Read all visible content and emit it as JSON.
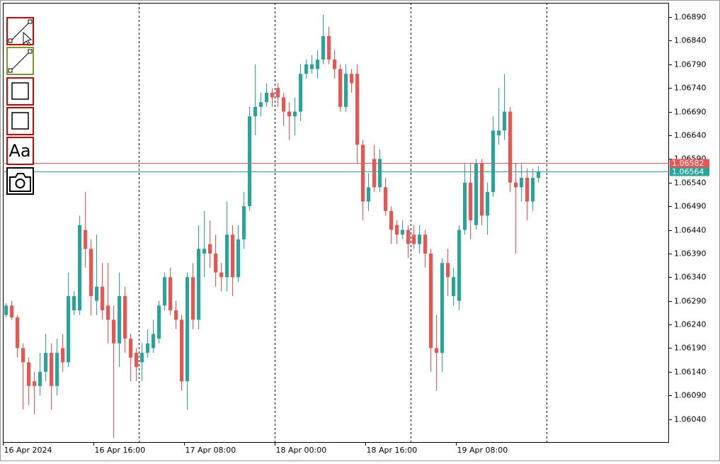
{
  "chart_data": {
    "type": "candlestick",
    "categories": [
      "16 Apr 2024",
      null,
      null,
      null,
      null,
      null,
      null,
      null,
      null,
      null,
      null,
      null,
      null,
      null,
      null,
      null,
      "16 Apr 16:00",
      null,
      null,
      null,
      null,
      null,
      null,
      null,
      null,
      null,
      null,
      null,
      null,
      null,
      null,
      null,
      "17 Apr 08:00",
      null,
      null,
      null,
      null,
      null,
      null,
      null,
      null,
      null,
      null,
      null,
      null,
      null,
      null,
      null,
      "18 Apr 00:00",
      null,
      null,
      null,
      null,
      null,
      null,
      null,
      null,
      null,
      null,
      null,
      null,
      null,
      null,
      null,
      "18 Apr 16:00",
      null,
      null,
      null,
      null,
      null,
      null,
      null,
      null,
      null,
      null,
      null,
      null,
      null,
      null,
      null,
      "19 Apr 08:00",
      null,
      null,
      null,
      null,
      null,
      null,
      null,
      null,
      null,
      null,
      null,
      null,
      null,
      null
    ],
    "open": [
      1.0626,
      1.0628,
      1.06255,
      1.0619,
      1.0616,
      1.0612,
      1.0611,
      1.0614,
      1.0618,
      1.0611,
      1.0619,
      1.0616,
      1.0627,
      1.0627,
      1.0644,
      1.064,
      1.0629,
      1.0632,
      1.0628,
      1.0625,
      1.062,
      1.063,
      1.0621,
      1.0618,
      1.0616,
      1.0618,
      1.0619,
      1.0621,
      1.0628,
      1.0634,
      1.0627,
      1.0625,
      1.0612,
      1.0634,
      1.0625,
      1.0639,
      1.0641,
      1.0639,
      1.0635,
      1.0634,
      1.0643,
      1.0634,
      1.0642,
      1.0649,
      1.0668,
      1.067,
      1.0671,
      1.0673,
      1.0674,
      1.0672,
      1.0669,
      1.0668,
      1.0669,
      1.0677,
      1.0678,
      1.0678,
      1.068,
      1.0685,
      1.068,
      1.0678,
      1.067,
      1.0677,
      1.0677,
      1.0662,
      1.065,
      1.0659,
      1.0653,
      1.0653,
      1.0648,
      1.0645,
      1.0643,
      1.0644,
      1.0643,
      1.0641,
      1.0643,
      1.0639,
      1.0619,
      1.0618,
      1.0637,
      1.063,
      1.0629,
      1.0644,
      1.0654,
      1.0645,
      1.0658,
      1.0647,
      1.0652,
      1.0664,
      1.0665,
      1.0669,
      1.0654,
      1.0653,
      1.0655,
      1.065,
      1.0655
    ],
    "high": [
      1.06285,
      1.0629,
      1.0626,
      1.062,
      1.0617,
      1.0614,
      1.0618,
      1.0622,
      1.062,
      1.0621,
      1.0622,
      1.0635,
      1.0631,
      1.0647,
      1.0652,
      1.0642,
      1.0643,
      1.0637,
      1.0637,
      1.0628,
      1.0635,
      1.0632,
      1.0622,
      1.0619,
      1.062,
      1.0623,
      1.0625,
      1.0629,
      1.0635,
      1.0636,
      1.0629,
      1.0626,
      1.0635,
      1.0637,
      1.0645,
      1.0648,
      1.0646,
      1.0643,
      1.0637,
      1.065,
      1.0645,
      1.0645,
      1.0652,
      1.067,
      1.0679,
      1.0673,
      1.0675,
      1.0674,
      1.0675,
      1.0673,
      1.0671,
      1.0672,
      1.0679,
      1.068,
      1.0681,
      1.0682,
      1.06895,
      1.0687,
      1.0682,
      1.0679,
      1.0679,
      1.0678,
      1.0679,
      1.0663,
      1.0656,
      1.0662,
      1.0661,
      1.0655,
      1.0649,
      1.0646,
      1.0646,
      1.0645,
      1.0645,
      1.0645,
      1.0644,
      1.064,
      1.0626,
      1.0638,
      1.064,
      1.0636,
      1.0645,
      1.0658,
      1.0658,
      1.0659,
      1.0659,
      1.0654,
      1.0668,
      1.0674,
      1.0677,
      1.067,
      1.0658,
      1.0658,
      1.0657,
      1.0657,
      1.06575
    ],
    "low": [
      1.06255,
      1.0625,
      1.0617,
      1.0606,
      1.0607,
      1.0605,
      1.0609,
      1.0612,
      1.0606,
      1.0609,
      1.0614,
      1.0615,
      1.0626,
      1.0626,
      1.0636,
      1.0626,
      1.0626,
      1.0625,
      1.062,
      1.06,
      1.0615,
      1.0618,
      1.0612,
      1.0612,
      1.0612,
      1.0617,
      1.0618,
      1.062,
      1.0627,
      1.0626,
      1.0623,
      1.061,
      1.0606,
      1.0623,
      1.0623,
      1.0634,
      1.0636,
      1.0632,
      1.0631,
      1.0631,
      1.063,
      1.0633,
      1.064,
      1.0648,
      1.0664,
      1.0668,
      1.067,
      1.067,
      1.067,
      1.0666,
      1.0663,
      1.0664,
      1.0667,
      1.0676,
      1.0677,
      1.0676,
      1.0679,
      1.0679,
      1.0676,
      1.0669,
      1.0669,
      1.0673,
      1.0658,
      1.0646,
      1.0648,
      1.0652,
      1.0652,
      1.0647,
      1.0641,
      1.0641,
      1.0642,
      1.0638,
      1.064,
      1.0639,
      1.0636,
      1.0614,
      1.061,
      1.0614,
      1.063,
      1.0628,
      1.0627,
      1.0643,
      1.0642,
      1.0644,
      1.0645,
      1.0643,
      1.0651,
      1.0662,
      1.0663,
      1.0652,
      1.0639,
      1.065,
      1.0646,
      1.0648,
      1.0654
    ],
    "close": [
      1.0628,
      1.06255,
      1.0619,
      1.0616,
      1.0611,
      1.0611,
      1.0614,
      1.0618,
      1.0611,
      1.0618,
      1.0616,
      1.063,
      1.063,
      1.0645,
      1.064,
      1.063,
      1.0632,
      1.0627,
      1.0625,
      1.062,
      1.063,
      1.0621,
      1.0617,
      1.0615,
      1.0618,
      1.062,
      1.0622,
      1.0628,
      1.0634,
      1.0627,
      1.0625,
      1.0612,
      1.0634,
      1.0625,
      1.064,
      1.064,
      1.0639,
      1.0635,
      1.0634,
      1.0643,
      1.0634,
      1.0642,
      1.0649,
      1.0668,
      1.067,
      1.0671,
      1.0673,
      1.0672,
      1.0672,
      1.0669,
      1.0668,
      1.0669,
      1.0677,
      1.0679,
      1.0679,
      1.068,
      1.0685,
      1.068,
      1.0678,
      1.067,
      1.0677,
      1.0675,
      1.0662,
      1.065,
      1.0653,
      1.0653,
      1.0659,
      1.0648,
      1.0644,
      1.0643,
      1.0644,
      1.0641,
      1.0641,
      1.0643,
      1.0639,
      1.0619,
      1.0618,
      1.0637,
      1.0634,
      1.0634,
      1.0644,
      1.0654,
      1.0646,
      1.0658,
      1.0647,
      1.0652,
      1.0665,
      1.0665,
      1.0669,
      1.0654,
      1.0653,
      1.0655,
      1.065,
      1.0655,
      1.06564
    ],
    "up_color": "#26a69a",
    "down_color": "#ef5350",
    "ylim": [
      1.0599,
      1.0692
    ],
    "yticks": [
      {
        "value": 1.0689,
        "label": "1.06890"
      },
      {
        "value": 1.0684,
        "label": "1.06840"
      },
      {
        "value": 1.0679,
        "label": "1.06790"
      },
      {
        "value": 1.0674,
        "label": "1.06740"
      },
      {
        "value": 1.0669,
        "label": "1.06690"
      },
      {
        "value": 1.0664,
        "label": "1.06640"
      },
      {
        "value": 1.0659,
        "label": "1.06590"
      },
      {
        "value": 1.0654,
        "label": "1.06540"
      },
      {
        "value": 1.0649,
        "label": "1.06490"
      },
      {
        "value": 1.0644,
        "label": "1.06440"
      },
      {
        "value": 1.0639,
        "label": "1.06390"
      },
      {
        "value": 1.0634,
        "label": "1.06340"
      },
      {
        "value": 1.0629,
        "label": "1.06290"
      },
      {
        "value": 1.0624,
        "label": "1.06240"
      },
      {
        "value": 1.0619,
        "label": "1.06190"
      },
      {
        "value": 1.0614,
        "label": "1.06140"
      },
      {
        "value": 1.0609,
        "label": "1.06090"
      },
      {
        "value": 1.0604,
        "label": "1.06040"
      }
    ],
    "period_separators": true,
    "price_lines": [
      {
        "value": 1.06582,
        "color": "#ef5350"
      },
      {
        "value": 1.06564,
        "color": "#26a69a"
      }
    ]
  },
  "toolbar": {
    "text_icon": "Aa"
  }
}
